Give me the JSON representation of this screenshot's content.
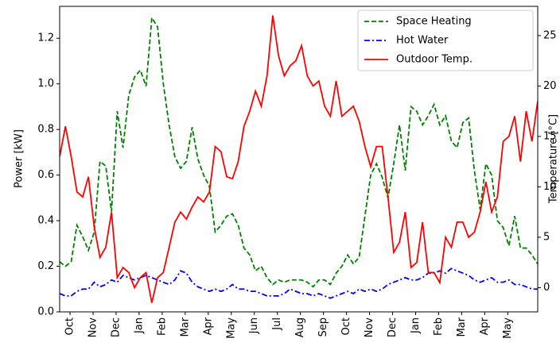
{
  "chart_data": {
    "type": "line",
    "ylabel": "Power [kW]",
    "y2label": "Temperature [°C]",
    "x": [
      -0.45,
      -0.2,
      0.05,
      0.3,
      0.55,
      0.8,
      1.05,
      1.3,
      1.55,
      1.8,
      2.05,
      2.3,
      2.55,
      2.8,
      3.05,
      3.3,
      3.55,
      3.8,
      4.05,
      4.3,
      4.55,
      4.8,
      5.05,
      5.3,
      5.55,
      5.8,
      6.05,
      6.3,
      6.55,
      6.8,
      7.05,
      7.3,
      7.55,
      7.8,
      8.05,
      8.3,
      8.55,
      8.8,
      9.05,
      9.3,
      9.55,
      9.8,
      10.05,
      10.3,
      10.55,
      10.8,
      11.05,
      11.3,
      11.55,
      11.8,
      12.05,
      12.3,
      12.55,
      12.8,
      13.05,
      13.3,
      13.55,
      13.8,
      14.05,
      14.3,
      14.55,
      14.8,
      15.05,
      15.3,
      15.55,
      15.8,
      16.05,
      16.3,
      16.55,
      16.8,
      17.05,
      17.3,
      17.55,
      17.8,
      18.05,
      18.3,
      18.55,
      18.8,
      19.05,
      19.3,
      19.55,
      19.8,
      20.05,
      20.3
    ],
    "series": [
      {
        "name": "Space Heating",
        "color": "#008000",
        "linestyle": "dashed",
        "values": [
          0.22,
          0.2,
          0.22,
          0.38,
          0.33,
          0.27,
          0.35,
          0.66,
          0.64,
          0.44,
          0.88,
          0.72,
          0.95,
          1.03,
          1.06,
          0.99,
          1.29,
          1.25,
          1.0,
          0.82,
          0.68,
          0.63,
          0.66,
          0.81,
          0.67,
          0.6,
          0.55,
          0.35,
          0.38,
          0.42,
          0.43,
          0.38,
          0.28,
          0.25,
          0.18,
          0.2,
          0.15,
          0.12,
          0.14,
          0.13,
          0.14,
          0.14,
          0.14,
          0.13,
          0.11,
          0.14,
          0.14,
          0.12,
          0.17,
          0.2,
          0.25,
          0.21,
          0.24,
          0.42,
          0.6,
          0.65,
          0.59,
          0.5,
          0.65,
          0.82,
          0.62,
          0.9,
          0.88,
          0.82,
          0.86,
          0.91,
          0.82,
          0.86,
          0.75,
          0.72,
          0.83,
          0.85,
          0.62,
          0.45,
          0.65,
          0.6,
          0.4,
          0.37,
          0.29,
          0.42,
          0.28,
          0.28,
          0.25,
          0.21
        ]
      },
      {
        "name": "Hot Water",
        "color": "#0000ff",
        "linestyle": "dashdot",
        "values": [
          0.08,
          0.07,
          0.07,
          0.09,
          0.1,
          0.1,
          0.13,
          0.11,
          0.12,
          0.14,
          0.13,
          0.16,
          0.15,
          0.14,
          0.15,
          0.16,
          0.15,
          0.14,
          0.13,
          0.12,
          0.14,
          0.18,
          0.17,
          0.13,
          0.11,
          0.1,
          0.09,
          0.1,
          0.09,
          0.1,
          0.12,
          0.1,
          0.1,
          0.09,
          0.09,
          0.08,
          0.07,
          0.07,
          0.07,
          0.08,
          0.1,
          0.09,
          0.08,
          0.08,
          0.07,
          0.08,
          0.07,
          0.06,
          0.07,
          0.08,
          0.09,
          0.08,
          0.1,
          0.09,
          0.1,
          0.09,
          0.1,
          0.12,
          0.13,
          0.14,
          0.15,
          0.14,
          0.14,
          0.15,
          0.17,
          0.17,
          0.18,
          0.17,
          0.19,
          0.18,
          0.17,
          0.16,
          0.14,
          0.13,
          0.14,
          0.15,
          0.13,
          0.13,
          0.14,
          0.12,
          0.12,
          0.11,
          0.1,
          0.1
        ]
      },
      {
        "name": "Outdoor Temp.",
        "color": "#ff0000",
        "linestyle": "solid",
        "axis": "y2",
        "values": [
          13,
          16,
          13,
          9.5,
          9,
          11,
          6,
          3,
          4,
          7.5,
          1,
          2,
          1.5,
          0,
          1,
          1.5,
          -1.5,
          1,
          1.5,
          4,
          6.5,
          7.5,
          6.8,
          8,
          9,
          8.5,
          9.5,
          14,
          13.5,
          11,
          10.8,
          12.5,
          16,
          17.5,
          19.5,
          18,
          21,
          27,
          23,
          21,
          22,
          22.5,
          24,
          21,
          20,
          20.5,
          18,
          17,
          20.5,
          17,
          17.5,
          18,
          16.5,
          14,
          12,
          14,
          14,
          9,
          3.5,
          4.5,
          7.5,
          2,
          2.5,
          6.5,
          1.5,
          1.5,
          0.5,
          5,
          4,
          6.5,
          6.5,
          5,
          5.5,
          7.5,
          10.5,
          7.5,
          9,
          14.5,
          15,
          17,
          12.5,
          17.5,
          14.5,
          18.5
        ]
      }
    ],
    "xlim": [
      -0.45,
      20.3
    ],
    "xticks": [
      {
        "value": 0,
        "label": "Oct"
      },
      {
        "value": 1,
        "label": "Nov"
      },
      {
        "value": 2,
        "label": "Dec"
      },
      {
        "value": 3,
        "label": "Jan"
      },
      {
        "value": 4,
        "label": "Feb"
      },
      {
        "value": 5,
        "label": "Mar"
      },
      {
        "value": 6,
        "label": "Apr"
      },
      {
        "value": 7,
        "label": "May"
      },
      {
        "value": 8,
        "label": "Jun"
      },
      {
        "value": 9,
        "label": "Jul"
      },
      {
        "value": 10,
        "label": "Aug"
      },
      {
        "value": 11,
        "label": "Sep"
      },
      {
        "value": 12,
        "label": "Oct"
      },
      {
        "value": 13,
        "label": "Nov"
      },
      {
        "value": 14,
        "label": "Dec"
      },
      {
        "value": 15,
        "label": "Jan"
      },
      {
        "value": 16,
        "label": "Feb"
      },
      {
        "value": 17,
        "label": "Mar"
      },
      {
        "value": 18,
        "label": "Apr"
      },
      {
        "value": 19,
        "label": "May"
      }
    ],
    "ylim": [
      0,
      1.34
    ],
    "yticks": [
      {
        "value": 0,
        "label": "0.0"
      },
      0.2,
      0.4,
      0.6,
      0.8,
      {
        "value": 1,
        "label": "1.0"
      },
      1.2
    ],
    "y2lim": [
      -2.4,
      27.9
    ],
    "y2ticks": [
      0,
      5,
      10,
      15,
      20,
      25
    ],
    "legend": "upper right"
  }
}
